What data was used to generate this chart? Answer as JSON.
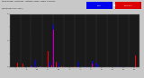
{
  "title": "Milwaukee  Weather  Outdoor Rain  Daily Amount",
  "title2": "(Past/Previous Year)",
  "bg_color": "#c8c8c8",
  "plot_bg": "#1a1a1a",
  "blue_color": "#0000ff",
  "red_color": "#ff0000",
  "legend_blue": "#0000ee",
  "legend_red": "#dd0000",
  "ylim": [
    0,
    2.0
  ],
  "n_points": 365,
  "grid_color": "#555555",
  "spine_color": "#888888",
  "tick_color": "#000000",
  "bar_width": 0.45
}
